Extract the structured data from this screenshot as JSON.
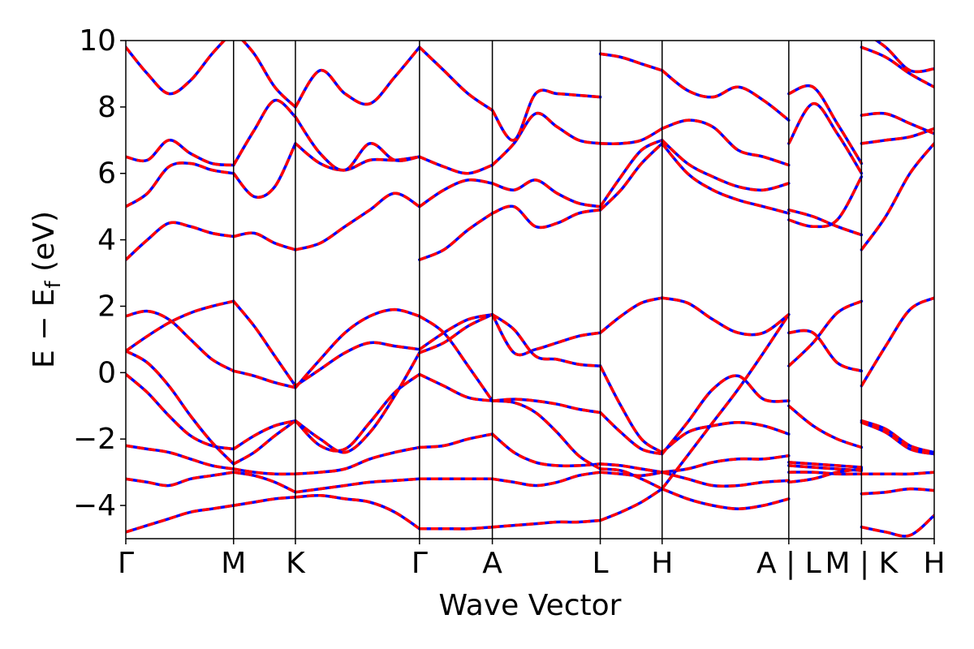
{
  "chart_data": {
    "type": "line",
    "xlabel": "Wave Vector",
    "ylabel": "E − E",
    "ylabel_sub": "f",
    "ylabel_unit": " (eV)",
    "ylim": [
      -5,
      10
    ],
    "yticks": [
      10,
      8,
      6,
      4,
      2,
      0,
      -2,
      -4
    ],
    "ytick_labels": [
      "10",
      "8",
      "6",
      "4",
      "2",
      "0",
      "−2",
      "−4"
    ],
    "xlim": [
      0,
      1
    ],
    "kpoints": [
      {
        "label": "Γ",
        "x": 0.0
      },
      {
        "label": "M",
        "x": 0.1333
      },
      {
        "label": "K",
        "x": 0.2098
      },
      {
        "label": "Γ",
        "x": 0.3633
      },
      {
        "label": "A",
        "x": 0.4534
      },
      {
        "label": "L",
        "x": 0.5869
      },
      {
        "label": "H",
        "x": 0.6634
      },
      {
        "label": "A | L",
        "x": 0.8201
      },
      {
        "label": "M | K",
        "x": 0.91
      },
      {
        "label": "H",
        "x": 1.0
      }
    ],
    "grid": false,
    "legend": "none",
    "series_styles": [
      {
        "color": "#0000ff",
        "style": "solid"
      },
      {
        "color": "#ff0000",
        "style": "dashed"
      }
    ],
    "segments": [
      {
        "x0": 0.0,
        "x1": 0.1333,
        "bands": [
          [
            -4.8,
            -4.6,
            -4.4,
            -4.2,
            -4.1,
            -4.0
          ],
          [
            -3.2,
            -3.3,
            -3.4,
            -3.2,
            -3.1,
            -3.0
          ],
          [
            -2.2,
            -2.3,
            -2.4,
            -2.6,
            -2.8,
            -2.9
          ],
          [
            -0.05,
            -0.6,
            -1.3,
            -1.9,
            -2.2,
            -2.3
          ],
          [
            0.65,
            0.3,
            -0.4,
            -1.3,
            -2.1,
            -2.75
          ],
          [
            0.65,
            1.1,
            1.5,
            1.8,
            2.0,
            2.15
          ],
          [
            1.7,
            1.85,
            1.6,
            1.0,
            0.4,
            0.05
          ],
          [
            3.4,
            4.0,
            4.5,
            4.4,
            4.2,
            4.1
          ],
          [
            5.0,
            5.4,
            6.2,
            6.3,
            6.1,
            6.0
          ],
          [
            6.5,
            6.4,
            7.0,
            6.6,
            6.3,
            6.25
          ],
          [
            9.8,
            9.0,
            8.4,
            8.8,
            9.6,
            10.3
          ]
        ]
      },
      {
        "x0": 0.1333,
        "x1": 0.2098,
        "bands": [
          [
            -4.0,
            -3.9,
            -3.8,
            -3.75
          ],
          [
            -3.0,
            -3.1,
            -3.3,
            -3.6
          ],
          [
            -2.9,
            -3.0,
            -3.05,
            -3.05
          ],
          [
            -2.3,
            -1.9,
            -1.6,
            -1.45
          ],
          [
            -2.75,
            -2.4,
            -1.9,
            -1.45
          ],
          [
            2.15,
            1.4,
            0.5,
            -0.4
          ],
          [
            0.05,
            -0.1,
            -0.3,
            -0.45
          ],
          [
            4.1,
            4.2,
            3.9,
            3.7
          ],
          [
            6.0,
            5.3,
            5.6,
            6.9
          ],
          [
            6.25,
            7.3,
            8.2,
            7.7
          ],
          [
            10.3,
            9.6,
            8.6,
            8.0
          ]
        ]
      },
      {
        "x0": 0.2098,
        "x1": 0.3633,
        "bands": [
          [
            -3.75,
            -3.7,
            -3.8,
            -3.9,
            -4.2,
            -4.7
          ],
          [
            -3.6,
            -3.5,
            -3.4,
            -3.3,
            -3.25,
            -3.2
          ],
          [
            -3.05,
            -3.0,
            -2.9,
            -2.6,
            -2.4,
            -2.25
          ],
          [
            -1.45,
            -2.2,
            -2.3,
            -1.5,
            -0.6,
            -0.05
          ],
          [
            -1.45,
            -2.0,
            -2.4,
            -1.8,
            -0.7,
            0.6
          ],
          [
            -0.4,
            0.1,
            0.6,
            0.9,
            0.8,
            0.7
          ],
          [
            -0.45,
            0.4,
            1.2,
            1.7,
            1.9,
            1.7
          ],
          [
            3.7,
            3.9,
            4.4,
            4.9,
            5.4,
            5.0
          ],
          [
            6.9,
            6.3,
            6.1,
            6.4,
            6.4,
            6.5
          ],
          [
            7.7,
            6.6,
            6.1,
            6.9,
            6.4,
            6.5
          ],
          [
            8.0,
            9.1,
            8.4,
            8.1,
            8.9,
            9.8
          ]
        ]
      },
      {
        "x0": 0.3633,
        "x1": 0.4534,
        "bands": [
          [
            -4.7,
            -4.7,
            -4.7,
            -4.65
          ],
          [
            -3.2,
            -3.2,
            -3.2,
            -3.2
          ],
          [
            -2.25,
            -2.2,
            -2.0,
            -1.85
          ],
          [
            -0.05,
            -0.4,
            -0.75,
            -0.85
          ],
          [
            0.6,
            0.9,
            1.4,
            1.75
          ],
          [
            0.7,
            1.2,
            1.6,
            1.75
          ],
          [
            1.7,
            1.2,
            0.2,
            -0.85
          ],
          [
            3.4,
            3.7,
            4.3,
            4.8
          ],
          [
            5.0,
            5.5,
            5.8,
            5.7
          ],
          [
            6.5,
            6.2,
            6.0,
            6.25
          ],
          [
            9.8,
            9.1,
            8.4,
            7.9
          ]
        ]
      },
      {
        "x0": 0.4534,
        "x1": 0.5869,
        "bands": [
          [
            -4.65,
            -4.6,
            -4.55,
            -4.5,
            -4.5,
            -4.45
          ],
          [
            -3.2,
            -3.3,
            -3.4,
            -3.3,
            -3.1,
            -3.0
          ],
          [
            -1.85,
            -2.4,
            -2.7,
            -2.8,
            -2.8,
            -2.75
          ],
          [
            -0.85,
            -0.9,
            -1.2,
            -1.8,
            -2.5,
            -2.9
          ],
          [
            1.75,
            0.6,
            0.7,
            0.9,
            1.1,
            1.2
          ],
          [
            1.75,
            1.3,
            0.5,
            0.4,
            0.25,
            0.2
          ],
          [
            -0.85,
            -0.8,
            -0.85,
            -0.95,
            -1.1,
            -1.2
          ],
          [
            4.8,
            5.0,
            4.4,
            4.5,
            4.8,
            4.9
          ],
          [
            5.7,
            5.5,
            5.8,
            5.4,
            5.1,
            5.0
          ],
          [
            6.25,
            6.9,
            7.8,
            7.4,
            7.0,
            6.9
          ],
          [
            7.9,
            7.0,
            8.4,
            8.4,
            8.35,
            8.3
          ]
        ]
      },
      {
        "x0": 0.5869,
        "x1": 0.6634,
        "bands": [
          [
            -4.45,
            -4.2,
            -3.9,
            -3.5
          ],
          [
            -3.0,
            -3.05,
            -3.1,
            -3.0
          ],
          [
            -2.75,
            -2.8,
            -2.9,
            -3.0
          ],
          [
            -2.9,
            -2.95,
            -3.2,
            -3.5
          ],
          [
            1.2,
            1.7,
            2.1,
            2.25
          ],
          [
            0.2,
            -1.0,
            -2.0,
            -2.4
          ],
          [
            -1.2,
            -1.8,
            -2.3,
            -2.45
          ],
          [
            4.9,
            5.5,
            6.3,
            6.9
          ],
          [
            5.0,
            5.9,
            6.7,
            7.0
          ],
          [
            6.9,
            6.9,
            7.0,
            7.35
          ],
          [
            9.6,
            9.5,
            9.3,
            9.1
          ]
        ]
      },
      {
        "x0": 0.6634,
        "x1": 0.8201,
        "bands": [
          [
            -3.5,
            -3.8,
            -4.0,
            -4.1,
            -4.0,
            -3.8
          ],
          [
            -3.0,
            -2.9,
            -2.7,
            -2.6,
            -2.6,
            -2.5
          ],
          [
            -3.0,
            -3.2,
            -3.4,
            -3.4,
            -3.3,
            -3.25
          ],
          [
            -3.5,
            -2.5,
            -1.5,
            -0.5,
            0.6,
            1.75
          ],
          [
            2.25,
            2.1,
            1.6,
            1.2,
            1.2,
            1.75
          ],
          [
            -2.4,
            -1.8,
            -1.6,
            -1.5,
            -1.6,
            -1.85
          ],
          [
            -2.45,
            -1.5,
            -0.5,
            -0.1,
            -0.8,
            -0.85
          ],
          [
            6.9,
            6.0,
            5.5,
            5.2,
            5.0,
            4.8
          ],
          [
            7.0,
            6.3,
            5.9,
            5.6,
            5.5,
            5.7
          ],
          [
            7.35,
            7.6,
            7.4,
            6.7,
            6.5,
            6.25
          ],
          [
            9.1,
            8.5,
            8.3,
            8.6,
            8.2,
            7.6
          ]
        ]
      },
      {
        "x0": 0.8201,
        "x1": 0.91,
        "bands": [
          [
            -2.7,
            -2.75,
            -2.8,
            -2.85
          ],
          [
            -2.8,
            -2.85,
            -2.9,
            -2.95
          ],
          [
            -3.0,
            -3.0,
            -3.05,
            -3.05
          ],
          [
            -3.3,
            -3.2,
            -3.0,
            -2.9
          ],
          [
            1.2,
            1.2,
            0.3,
            0.05
          ],
          [
            0.2,
            0.9,
            1.8,
            2.15
          ],
          [
            -1.0,
            -1.6,
            -2.0,
            -2.25
          ],
          [
            4.9,
            4.7,
            4.4,
            4.15
          ],
          [
            4.6,
            4.4,
            4.6,
            5.9
          ],
          [
            6.9,
            8.1,
            7.2,
            6.0
          ],
          [
            8.4,
            8.6,
            7.5,
            6.3
          ]
        ]
      },
      {
        "x0": 0.91,
        "x1": 1.0,
        "bands": [
          [
            -4.65,
            -4.8,
            -4.9,
            -4.3
          ],
          [
            -3.65,
            -3.6,
            -3.5,
            -3.55
          ],
          [
            -3.05,
            -3.05,
            -3.05,
            -3.0
          ],
          [
            -1.5,
            -1.8,
            -2.3,
            -2.45
          ],
          [
            -1.45,
            -1.7,
            -2.2,
            -2.4
          ],
          [
            -0.4,
            0.8,
            1.9,
            2.25
          ],
          [
            3.7,
            4.7,
            6.0,
            6.9
          ],
          [
            6.9,
            7.0,
            7.1,
            7.35
          ],
          [
            7.75,
            7.8,
            7.5,
            7.2
          ],
          [
            9.8,
            9.5,
            9.0,
            8.6
          ],
          [
            10.3,
            9.8,
            9.1,
            9.15
          ]
        ]
      }
    ]
  }
}
